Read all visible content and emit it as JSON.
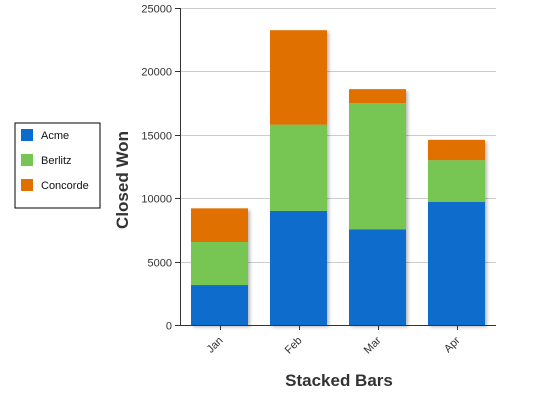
{
  "chart_data": {
    "type": "bar",
    "stacked": true,
    "categories": [
      "Jan",
      "Feb",
      "Mar",
      "Apr"
    ],
    "series": [
      {
        "name": "Acme",
        "color": "#0a6ccc",
        "values": [
          3150,
          9000,
          7550,
          9700
        ]
      },
      {
        "name": "Berlitz",
        "color": "#77c653",
        "values": [
          3400,
          6800,
          9950,
          3300
        ]
      },
      {
        "name": "Concorde",
        "color": "#e07000",
        "values": [
          2650,
          7450,
          1100,
          1600
        ]
      }
    ],
    "xlabel": "Stacked Bars",
    "ylabel": "Closed Won",
    "ylim": [
      0,
      25000
    ],
    "yticks": [
      0,
      5000,
      10000,
      15000,
      20000,
      25000
    ],
    "ytick_labels": [
      "0",
      "5000",
      "10000",
      "15000",
      "20000",
      "25000"
    ],
    "grid": true,
    "legend": "left"
  }
}
